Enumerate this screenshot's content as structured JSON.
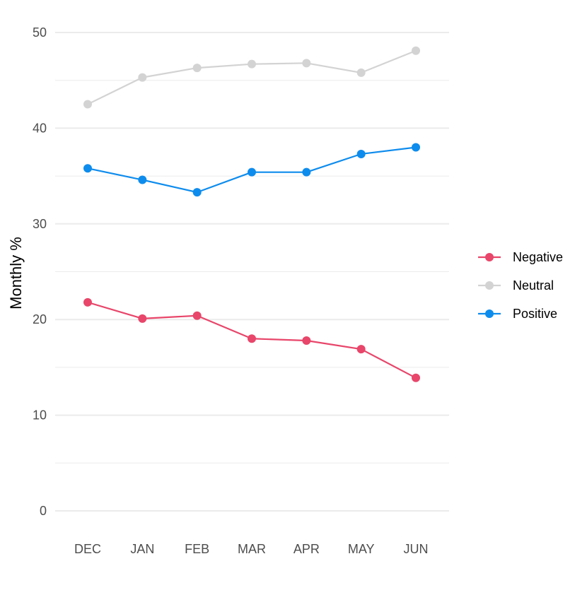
{
  "chart_data": {
    "type": "line",
    "title": "",
    "xlabel": "",
    "ylabel": "Monthly %",
    "ylim": [
      0,
      50
    ],
    "yticks": [
      0,
      10,
      20,
      30,
      40,
      50
    ],
    "grid": true,
    "legend_position": "right",
    "categories": [
      "DEC",
      "JAN",
      "FEB",
      "MAR",
      "APR",
      "MAY",
      "JUN"
    ],
    "series": [
      {
        "name": "Negative",
        "color": "#E8466A",
        "values": [
          21.8,
          20.1,
          20.4,
          18.0,
          17.8,
          16.9,
          13.9
        ]
      },
      {
        "name": "Neutral",
        "color": "#D3D3D3",
        "values": [
          42.5,
          45.3,
          46.3,
          46.7,
          46.8,
          45.8,
          48.1
        ]
      },
      {
        "name": "Positive",
        "color": "#0E8CED",
        "values": [
          35.8,
          34.6,
          33.3,
          35.4,
          35.4,
          37.3,
          38.0
        ]
      }
    ]
  }
}
